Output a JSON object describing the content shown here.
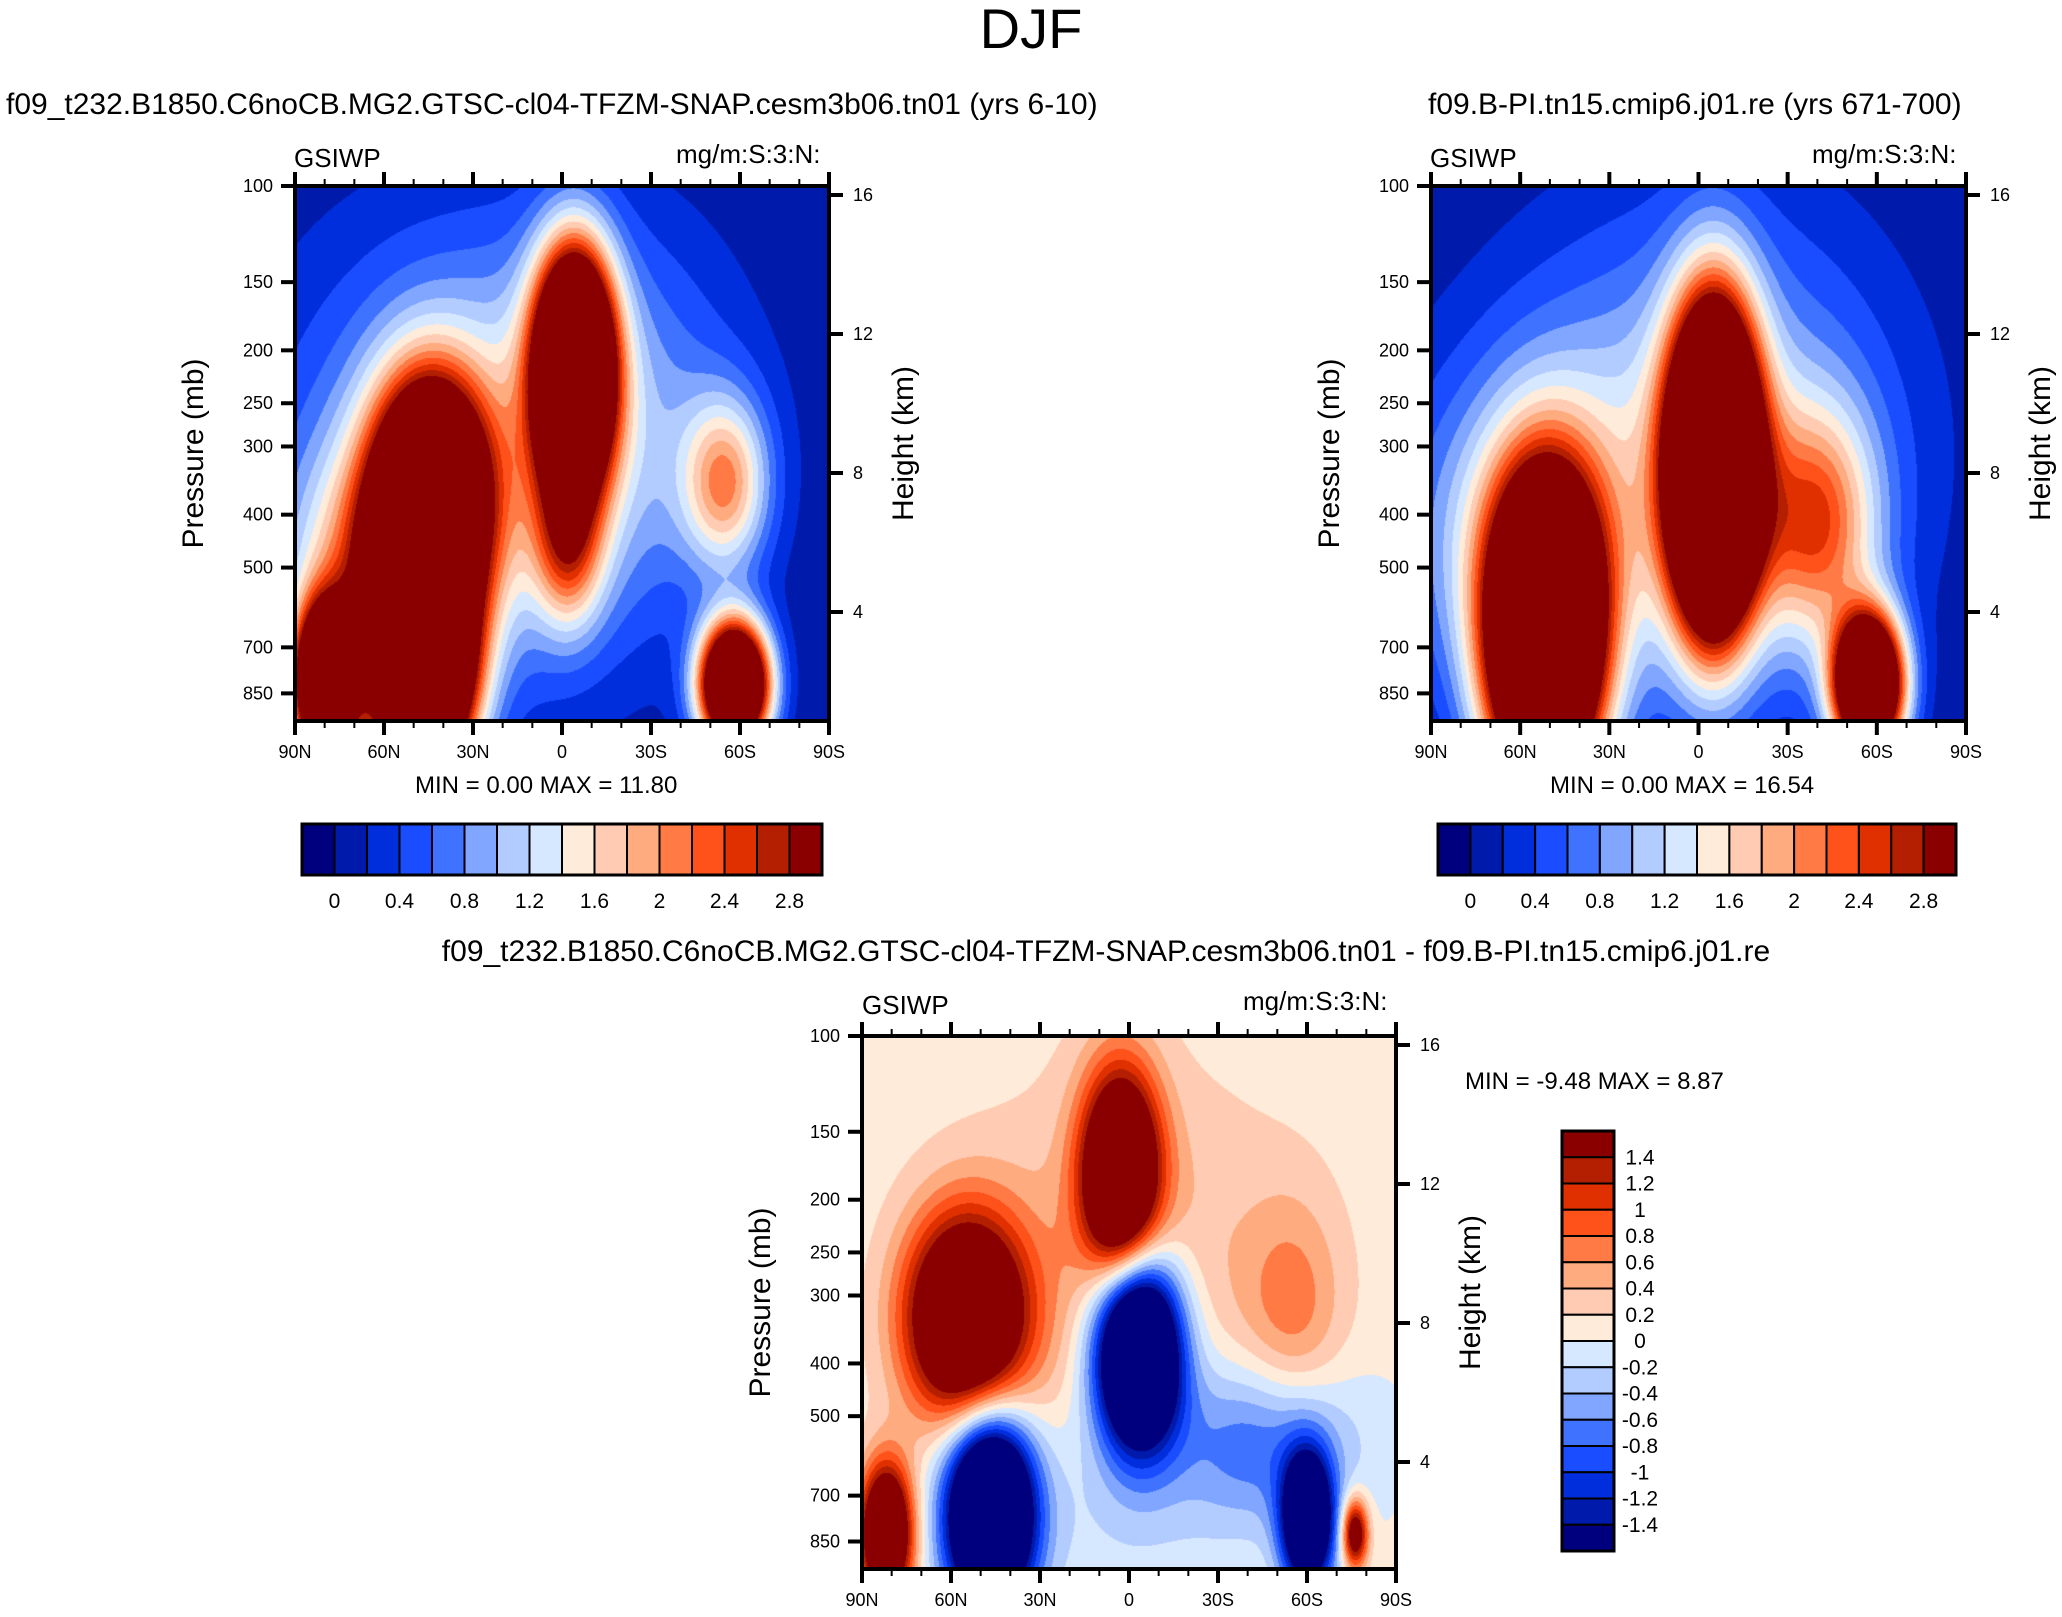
{
  "figure": {
    "title": "DJF"
  },
  "colors": {
    "palette": [
      "#00007F",
      "#001AAB",
      "#002EDC",
      "#1A4DFF",
      "#3F72FF",
      "#80A6FF",
      "#B3CCFF",
      "#D6E8FF",
      "#FFEBD9",
      "#FFCCB3",
      "#FFAB80",
      "#FF7A45",
      "#FF511A",
      "#E03000",
      "#B31F00",
      "#8A0000"
    ],
    "axis": "#000000",
    "background": "#FFFFFF"
  },
  "chart_data": [
    {
      "id": "panel1",
      "type": "heatmap",
      "title": "f09_t232.B1850.C6noCB.MG2.GTSC-cl04-TFZM-SNAP.cesm3b06.tn01 (yrs 6-10)",
      "left_label": "GSIWP",
      "right_label": "mg/m:S:3:N:",
      "xlabel": "",
      "ylabel": "Pressure (mb)",
      "ylabel_right": "Height (km)",
      "x_ticks": [
        "90N",
        "60N",
        "30N",
        "0",
        "30S",
        "60S",
        "90S"
      ],
      "x_range": [
        90,
        -90
      ],
      "y_ticks": [
        100,
        150,
        200,
        250,
        300,
        400,
        500,
        700,
        850
      ],
      "y_range_mb": [
        100,
        955
      ],
      "y_scale": "log",
      "y_right_ticks": [
        16,
        12,
        8,
        4
      ],
      "min_max_text": "MIN =   0.00  MAX =  11.80",
      "min": 0.0,
      "max": 11.8,
      "colorbar": {
        "orientation": "horizontal",
        "levels": [
          0,
          0.2,
          0.4,
          0.6,
          0.8,
          1.0,
          1.2,
          1.4,
          1.6,
          1.8,
          2.0,
          2.2,
          2.4,
          2.6,
          2.8
        ],
        "labels": [
          "0",
          "0.4",
          "0.8",
          "1.2",
          "1.6",
          "2",
          "2.4",
          "2.8"
        ]
      },
      "field": {
        "base": 0.0,
        "blobs": [
          {
            "lat": 45,
            "p": 380,
            "amp": 5.5,
            "wlat": 13,
            "wp": 0.35
          },
          {
            "lat": 47,
            "p": 780,
            "amp": 7.0,
            "wlat": 11,
            "wp": 0.3
          },
          {
            "lat": 80,
            "p": 820,
            "amp": 6.0,
            "wlat": 7,
            "wp": 0.22
          },
          {
            "lat": 62,
            "p": 520,
            "amp": 1.6,
            "wlat": 20,
            "wp": 0.35
          },
          {
            "lat": -4,
            "p": 215,
            "amp": 6.5,
            "wlat": 9,
            "wp": 0.33
          },
          {
            "lat": -2,
            "p": 450,
            "amp": 1.6,
            "wlat": 8,
            "wp": 0.25
          },
          {
            "lat": -55,
            "p": 350,
            "amp": 1.7,
            "wlat": 10,
            "wp": 0.25
          },
          {
            "lat": -58,
            "p": 820,
            "amp": 6.0,
            "wlat": 8,
            "wp": 0.18
          },
          {
            "lat": -10,
            "p": 280,
            "amp": 1.0,
            "wlat": 35,
            "wp": 0.6
          },
          {
            "lat": 45,
            "p": 330,
            "amp": 0.9,
            "wlat": 40,
            "wp": 0.7
          }
        ]
      }
    },
    {
      "id": "panel2",
      "type": "heatmap",
      "title": "f09.B-PI.tn15.cmip6.j01.re (yrs 671-700)",
      "left_label": "GSIWP",
      "right_label": "mg/m:S:3:N:",
      "xlabel": "",
      "ylabel": "Pressure (mb)",
      "ylabel_right": "Height (km)",
      "x_ticks": [
        "90N",
        "60N",
        "30N",
        "0",
        "30S",
        "60S",
        "90S"
      ],
      "x_range": [
        90,
        -90
      ],
      "y_ticks": [
        100,
        150,
        200,
        250,
        300,
        400,
        500,
        700,
        850
      ],
      "y_range_mb": [
        100,
        955
      ],
      "y_scale": "log",
      "y_right_ticks": [
        16,
        12,
        8,
        4
      ],
      "min_max_text": "MIN =   0.00  MAX =  16.54",
      "min": 0.0,
      "max": 16.54,
      "colorbar": {
        "orientation": "horizontal",
        "levels": [
          0,
          0.2,
          0.4,
          0.6,
          0.8,
          1.0,
          1.2,
          1.4,
          1.6,
          1.8,
          2.0,
          2.2,
          2.4,
          2.6,
          2.8
        ],
        "labels": [
          "0",
          "0.4",
          "0.8",
          "1.2",
          "1.6",
          "2",
          "2.4",
          "2.8"
        ]
      },
      "field": {
        "base": 0.0,
        "blobs": [
          {
            "lat": 52,
            "p": 680,
            "amp": 7.0,
            "wlat": 13,
            "wp": 0.45
          },
          {
            "lat": -5,
            "p": 330,
            "amp": 8.0,
            "wlat": 10,
            "wp": 0.45
          },
          {
            "lat": -57,
            "p": 820,
            "amp": 6.0,
            "wlat": 8,
            "wp": 0.2
          },
          {
            "lat": -40,
            "p": 420,
            "amp": 1.8,
            "wlat": 14,
            "wp": 0.35
          },
          {
            "lat": 0,
            "p": 300,
            "amp": 1.2,
            "wlat": 45,
            "wp": 0.7
          },
          {
            "lat": 60,
            "p": 450,
            "amp": 1.0,
            "wlat": 30,
            "wp": 0.5
          }
        ]
      }
    },
    {
      "id": "panel3",
      "type": "heatmap",
      "title": "f09_t232.B1850.C6noCB.MG2.GTSC-cl04-TFZM-SNAP.cesm3b06.tn01 - f09.B-PI.tn15.cmip6.j01.re",
      "left_label": "GSIWP",
      "right_label": "mg/m:S:3:N:",
      "xlabel": "",
      "ylabel": "Pressure (mb)",
      "ylabel_right": "Height (km)",
      "x_ticks": [
        "90N",
        "60N",
        "30N",
        "0",
        "30S",
        "60S",
        "90S"
      ],
      "x_range": [
        90,
        -90
      ],
      "y_ticks": [
        100,
        150,
        200,
        250,
        300,
        400,
        500,
        700,
        850
      ],
      "y_range_mb": [
        100,
        955
      ],
      "y_scale": "log",
      "y_right_ticks": [
        16,
        12,
        8,
        4
      ],
      "min_max_text": "MIN =  -9.48  MAX =   8.87",
      "min": -9.48,
      "max": 8.87,
      "colorbar": {
        "orientation": "vertical",
        "levels": [
          -1.4,
          -1.2,
          -1.0,
          -0.8,
          -0.6,
          -0.4,
          -0.2,
          0,
          0.2,
          0.4,
          0.6,
          0.8,
          1.0,
          1.2,
          1.4
        ],
        "labels": [
          "-1.4",
          "-1.2",
          "-1",
          "-0.8",
          "-0.6",
          "-0.4",
          "-0.2",
          "0",
          "0.2",
          "0.4",
          "0.6",
          "0.8",
          "1",
          "1.2",
          "1.4"
        ]
      },
      "field": {
        "base": 0.05,
        "blobs": [
          {
            "lat": 55,
            "p": 330,
            "amp": 3.0,
            "wlat": 14,
            "wp": 0.3
          },
          {
            "lat": 82,
            "p": 820,
            "amp": 3.0,
            "wlat": 6,
            "wp": 0.2
          },
          {
            "lat": 47,
            "p": 750,
            "amp": -4.0,
            "wlat": 10,
            "wp": 0.28
          },
          {
            "lat": 3,
            "p": 180,
            "amp": 3.0,
            "wlat": 9,
            "wp": 0.3
          },
          {
            "lat": -3,
            "p": 380,
            "amp": -4.0,
            "wlat": 10,
            "wp": 0.28
          },
          {
            "lat": -60,
            "p": 780,
            "amp": -3.0,
            "wlat": 6,
            "wp": 0.2
          },
          {
            "lat": -76,
            "p": 820,
            "amp": 2.0,
            "wlat": 3,
            "wp": 0.1
          },
          {
            "lat": -55,
            "p": 330,
            "amp": 0.6,
            "wlat": 12,
            "wp": 0.35
          },
          {
            "lat": 5,
            "p": 750,
            "amp": -0.25,
            "wlat": 30,
            "wp": 0.3
          },
          {
            "lat": -45,
            "p": 550,
            "amp": -0.9,
            "wlat": 22,
            "wp": 0.25
          },
          {
            "lat": 0,
            "p": 250,
            "amp": 0.4,
            "wlat": 40,
            "wp": 0.6
          }
        ]
      }
    }
  ]
}
